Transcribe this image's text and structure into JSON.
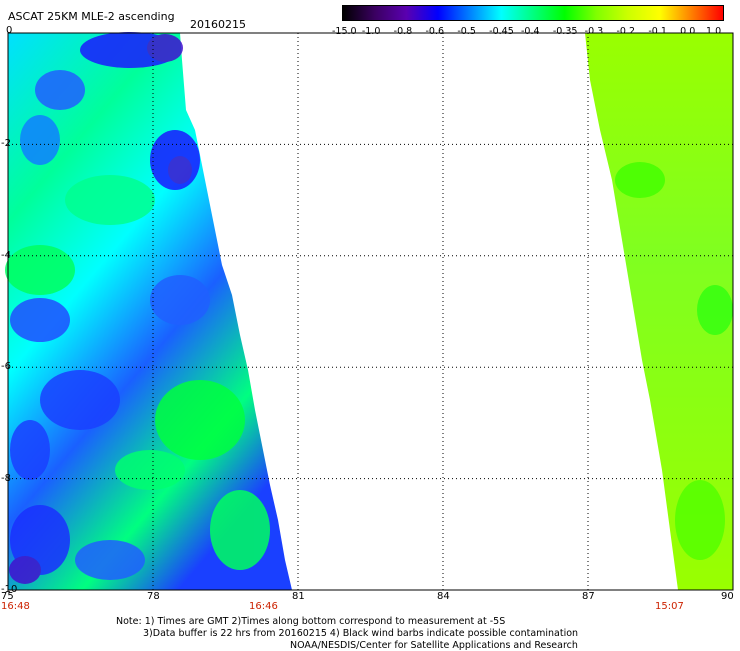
{
  "header": {
    "title": "ASCAT 25KM MLE-2 ascending",
    "date": "20160215"
  },
  "colorbar": {
    "labels": [
      "-15.0",
      "-1.0",
      "-0.8",
      "-0.6",
      "-0.5",
      "-0.45",
      "-0.4",
      "-0.35",
      "-0.3",
      "-0.2",
      "-0.1",
      "0.0",
      "1.0"
    ],
    "colors": [
      "#000000",
      "#3a0060",
      "#5a00b0",
      "#0000ff",
      "#0080ff",
      "#00ffff",
      "#00ff80",
      "#00ff00",
      "#80ff00",
      "#ccff00",
      "#ffff00",
      "#ff8000",
      "#ff0000"
    ]
  },
  "axes": {
    "lon_labels": [
      "75",
      "78",
      "81",
      "84",
      "87",
      "90"
    ],
    "lat_labels": [
      "0",
      "-2",
      "-4",
      "-6",
      "-8",
      "-10"
    ],
    "lon_range": [
      75,
      90
    ],
    "lat_range": [
      0,
      -10
    ]
  },
  "times": {
    "left": "16:48",
    "mid": "16:46",
    "right": "15:07"
  },
  "swaths": {
    "west": {
      "lon_min": 75,
      "lon_max_top": 78.6,
      "lon_max_bottom": 80.9,
      "dominant_colors": [
        "#00ffff",
        "#00ff80",
        "#0080ff",
        "#0000ff"
      ]
    },
    "east": {
      "lon_min_top": 87,
      "lon_min_bottom": 88.9,
      "lon_max": 90,
      "dominant_colors": [
        "#99ff00",
        "#40ff00"
      ]
    }
  },
  "notes": {
    "line1": "Note: 1) Times are GMT 2)Times along bottom correspond to measurement at -5S",
    "line2": "3)Data buffer is 22 hrs from 20160215 4) Black wind barbs indicate possible contamination",
    "line3": "NOAA/NESDIS/Center for Satellite Applications and Research"
  }
}
